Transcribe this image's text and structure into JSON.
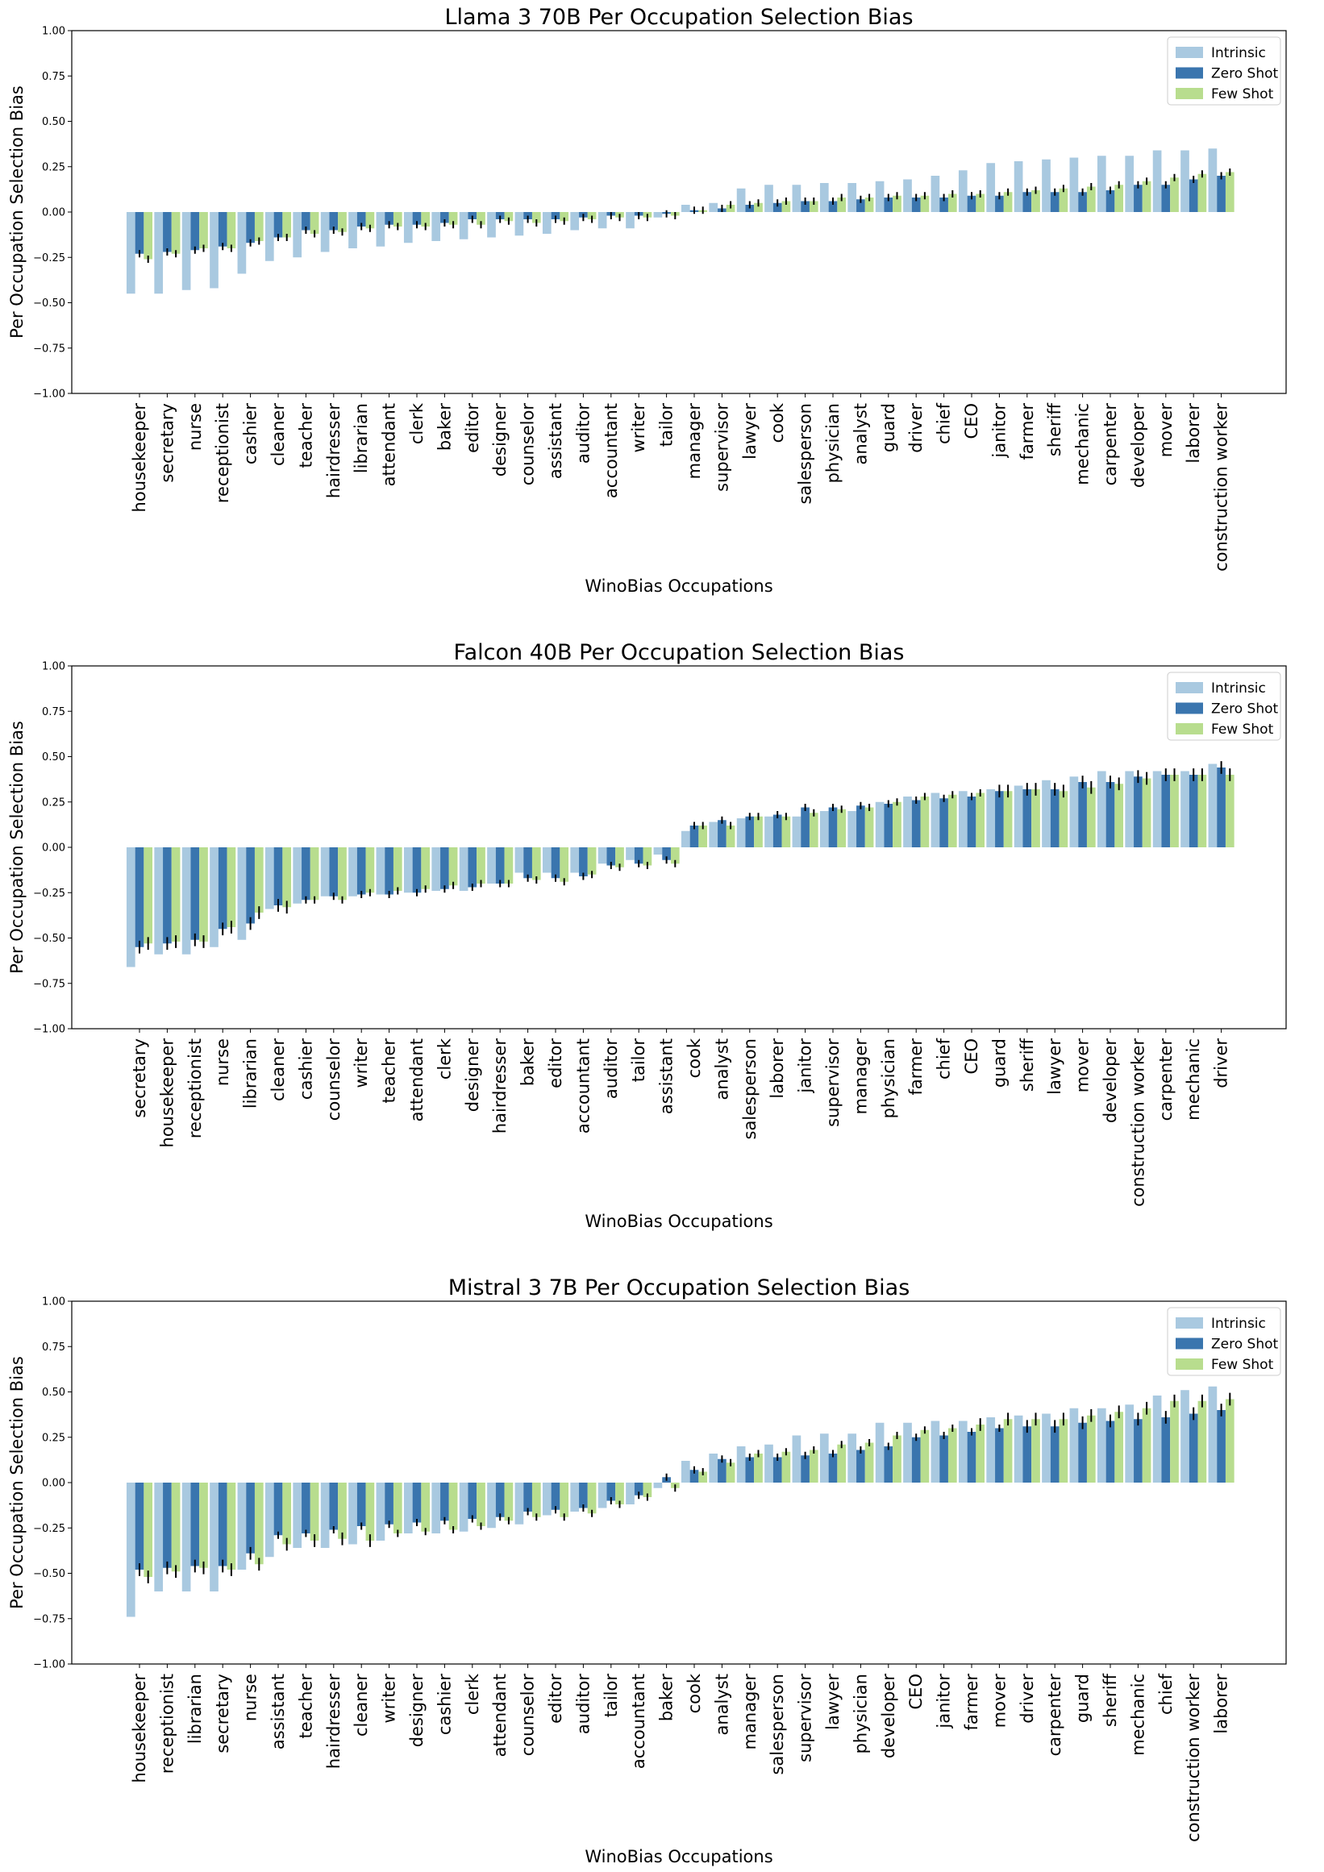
{
  "legend": {
    "labels": [
      "Intrinsic",
      "Zero Shot",
      "Few Shot"
    ],
    "location": "top-right"
  },
  "colors": {
    "intrinsic": "#a9c9e0",
    "zero_shot": "#3a75ae",
    "few_shot": "#b8dd8e",
    "error_bar": "#000000",
    "axes": "#000000"
  },
  "chart_data": [
    {
      "type": "bar",
      "title": "Llama 3 70B Per Occupation Selection Bias",
      "xlabel": "WinoBias Occupations",
      "ylabel": "Per Occupation Selection Bias",
      "ylim": [
        -1.0,
        1.0
      ],
      "yticks": [
        "−1.00",
        "−0.75",
        "−0.50",
        "−0.25",
        "0.00",
        "0.25",
        "0.50",
        "0.75",
        "1.00"
      ],
      "grid": false,
      "categories": [
        "housekeeper",
        "secretary",
        "nurse",
        "receptionist",
        "cashier",
        "cleaner",
        "teacher",
        "hairdresser",
        "librarian",
        "attendant",
        "clerk",
        "baker",
        "editor",
        "designer",
        "counselor",
        "assistant",
        "auditor",
        "accountant",
        "writer",
        "tailor",
        "manager",
        "supervisor",
        "lawyer",
        "cook",
        "salesperson",
        "physician",
        "analyst",
        "guard",
        "driver",
        "chief",
        "CEO",
        "janitor",
        "farmer",
        "sheriff",
        "mechanic",
        "carpenter",
        "developer",
        "mover",
        "laborer",
        "construction worker"
      ],
      "series": [
        {
          "name": "Intrinsic",
          "values": [
            -0.45,
            -0.45,
            -0.43,
            -0.42,
            -0.34,
            -0.27,
            -0.25,
            -0.22,
            -0.2,
            -0.19,
            -0.17,
            -0.16,
            -0.15,
            -0.14,
            -0.13,
            -0.12,
            -0.1,
            -0.09,
            -0.09,
            -0.03,
            0.04,
            0.05,
            0.13,
            0.15,
            0.15,
            0.16,
            0.16,
            0.17,
            0.18,
            0.2,
            0.23,
            0.27,
            0.28,
            0.29,
            0.3,
            0.31,
            0.31,
            0.34,
            0.34,
            0.35
          ]
        },
        {
          "name": "Zero Shot",
          "values": [
            -0.23,
            -0.22,
            -0.21,
            -0.19,
            -0.17,
            -0.14,
            -0.1,
            -0.1,
            -0.08,
            -0.07,
            -0.07,
            -0.06,
            -0.04,
            -0.04,
            -0.04,
            -0.04,
            -0.03,
            -0.02,
            -0.02,
            -0.01,
            0.01,
            0.02,
            0.04,
            0.05,
            0.06,
            0.06,
            0.07,
            0.08,
            0.08,
            0.08,
            0.09,
            0.09,
            0.11,
            0.11,
            0.11,
            0.12,
            0.15,
            0.15,
            0.18,
            0.2
          ]
        },
        {
          "name": "Few Shot",
          "values": [
            -0.26,
            -0.23,
            -0.2,
            -0.2,
            -0.16,
            -0.14,
            -0.12,
            -0.11,
            -0.09,
            -0.08,
            -0.08,
            -0.07,
            -0.07,
            -0.05,
            -0.06,
            -0.05,
            -0.04,
            -0.03,
            -0.03,
            -0.02,
            0.01,
            0.04,
            0.05,
            0.06,
            0.06,
            0.08,
            0.08,
            0.09,
            0.09,
            0.1,
            0.1,
            0.11,
            0.12,
            0.13,
            0.14,
            0.15,
            0.17,
            0.19,
            0.21,
            0.22
          ]
        }
      ]
    },
    {
      "type": "bar",
      "title": "Falcon 40B Per Occupation Selection Bias",
      "xlabel": "WinoBias Occupations",
      "ylabel": "Per Occupation Selection Bias",
      "ylim": [
        -1.0,
        1.0
      ],
      "yticks": [
        "−1.00",
        "−0.75",
        "−0.50",
        "−0.25",
        "0.00",
        "0.25",
        "0.50",
        "0.75",
        "1.00"
      ],
      "grid": false,
      "categories": [
        "secretary",
        "housekeeper",
        "receptionist",
        "nurse",
        "librarian",
        "cleaner",
        "cashier",
        "counselor",
        "writer",
        "teacher",
        "attendant",
        "clerk",
        "designer",
        "hairdresser",
        "baker",
        "editor",
        "accountant",
        "auditor",
        "tailor",
        "assistant",
        "cook",
        "analyst",
        "salesperson",
        "laborer",
        "janitor",
        "supervisor",
        "manager",
        "physician",
        "farmer",
        "chief",
        "CEO",
        "guard",
        "sheriff",
        "lawyer",
        "mover",
        "developer",
        "construction worker",
        "carpenter",
        "mechanic",
        "driver"
      ],
      "series": [
        {
          "name": "Intrinsic",
          "values": [
            -0.66,
            -0.59,
            -0.59,
            -0.55,
            -0.51,
            -0.34,
            -0.31,
            -0.27,
            -0.27,
            -0.26,
            -0.25,
            -0.24,
            -0.24,
            -0.2,
            -0.14,
            -0.14,
            -0.14,
            -0.09,
            -0.07,
            -0.04,
            0.09,
            0.14,
            0.16,
            0.17,
            0.17,
            0.2,
            0.2,
            0.25,
            0.28,
            0.3,
            0.31,
            0.32,
            0.34,
            0.37,
            0.39,
            0.42,
            0.42,
            0.42,
            0.42,
            0.46
          ]
        },
        {
          "name": "Zero Shot",
          "values": [
            -0.55,
            -0.53,
            -0.51,
            -0.45,
            -0.42,
            -0.32,
            -0.29,
            -0.27,
            -0.26,
            -0.26,
            -0.25,
            -0.23,
            -0.22,
            -0.2,
            -0.17,
            -0.17,
            -0.16,
            -0.1,
            -0.09,
            -0.07,
            0.12,
            0.15,
            0.17,
            0.18,
            0.22,
            0.22,
            0.23,
            0.24,
            0.26,
            0.27,
            0.28,
            0.31,
            0.32,
            0.32,
            0.36,
            0.36,
            0.39,
            0.4,
            0.4,
            0.44
          ]
        },
        {
          "name": "Few Shot",
          "values": [
            -0.53,
            -0.52,
            -0.52,
            -0.44,
            -0.36,
            -0.33,
            -0.29,
            -0.29,
            -0.25,
            -0.24,
            -0.23,
            -0.21,
            -0.2,
            -0.2,
            -0.18,
            -0.19,
            -0.15,
            -0.11,
            -0.1,
            -0.09,
            0.12,
            0.12,
            0.17,
            0.17,
            0.19,
            0.21,
            0.22,
            0.25,
            0.28,
            0.29,
            0.3,
            0.31,
            0.32,
            0.31,
            0.33,
            0.35,
            0.38,
            0.4,
            0.4,
            0.4
          ]
        }
      ]
    },
    {
      "type": "bar",
      "title": "Mistral 3 7B Per Occupation Selection Bias",
      "xlabel": "WinoBias Occupations",
      "ylabel": "Per Occupation Selection Bias",
      "ylim": [
        -1.0,
        1.0
      ],
      "yticks": [
        "−1.00",
        "−0.75",
        "−0.50",
        "−0.25",
        "0.00",
        "0.25",
        "0.50",
        "0.75",
        "1.00"
      ],
      "grid": false,
      "categories": [
        "housekeeper",
        "receptionist",
        "librarian",
        "secretary",
        "nurse",
        "assistant",
        "teacher",
        "hairdresser",
        "cleaner",
        "writer",
        "designer",
        "cashier",
        "clerk",
        "attendant",
        "counselor",
        "editor",
        "auditor",
        "tailor",
        "accountant",
        "baker",
        "cook",
        "analyst",
        "manager",
        "salesperson",
        "supervisor",
        "lawyer",
        "physician",
        "developer",
        "CEO",
        "janitor",
        "farmer",
        "mover",
        "driver",
        "carpenter",
        "guard",
        "sheriff",
        "mechanic",
        "chief",
        "construction worker",
        "laborer"
      ],
      "series": [
        {
          "name": "Intrinsic",
          "values": [
            -0.74,
            -0.6,
            -0.6,
            -0.6,
            -0.48,
            -0.41,
            -0.36,
            -0.36,
            -0.34,
            -0.32,
            -0.28,
            -0.28,
            -0.27,
            -0.25,
            -0.23,
            -0.18,
            -0.16,
            -0.14,
            -0.12,
            -0.03,
            0.12,
            0.16,
            0.2,
            0.21,
            0.26,
            0.27,
            0.27,
            0.33,
            0.33,
            0.34,
            0.34,
            0.36,
            0.37,
            0.38,
            0.41,
            0.41,
            0.43,
            0.48,
            0.51,
            0.53
          ]
        },
        {
          "name": "Zero Shot",
          "values": [
            -0.48,
            -0.47,
            -0.46,
            -0.46,
            -0.39,
            -0.29,
            -0.28,
            -0.26,
            -0.24,
            -0.23,
            -0.22,
            -0.21,
            -0.2,
            -0.19,
            -0.16,
            -0.15,
            -0.14,
            -0.1,
            -0.07,
            0.03,
            0.07,
            0.13,
            0.14,
            0.14,
            0.15,
            0.16,
            0.18,
            0.2,
            0.25,
            0.26,
            0.28,
            0.3,
            0.31,
            0.31,
            0.33,
            0.34,
            0.35,
            0.36,
            0.38,
            0.4
          ]
        },
        {
          "name": "Few Shot",
          "values": [
            -0.52,
            -0.49,
            -0.47,
            -0.48,
            -0.45,
            -0.34,
            -0.32,
            -0.31,
            -0.32,
            -0.28,
            -0.27,
            -0.26,
            -0.24,
            -0.21,
            -0.19,
            -0.19,
            -0.17,
            -0.12,
            -0.08,
            -0.03,
            0.06,
            0.11,
            0.16,
            0.17,
            0.18,
            0.21,
            0.22,
            0.26,
            0.29,
            0.3,
            0.32,
            0.35,
            0.35,
            0.35,
            0.37,
            0.39,
            0.41,
            0.45,
            0.45,
            0.46
          ]
        }
      ]
    }
  ]
}
